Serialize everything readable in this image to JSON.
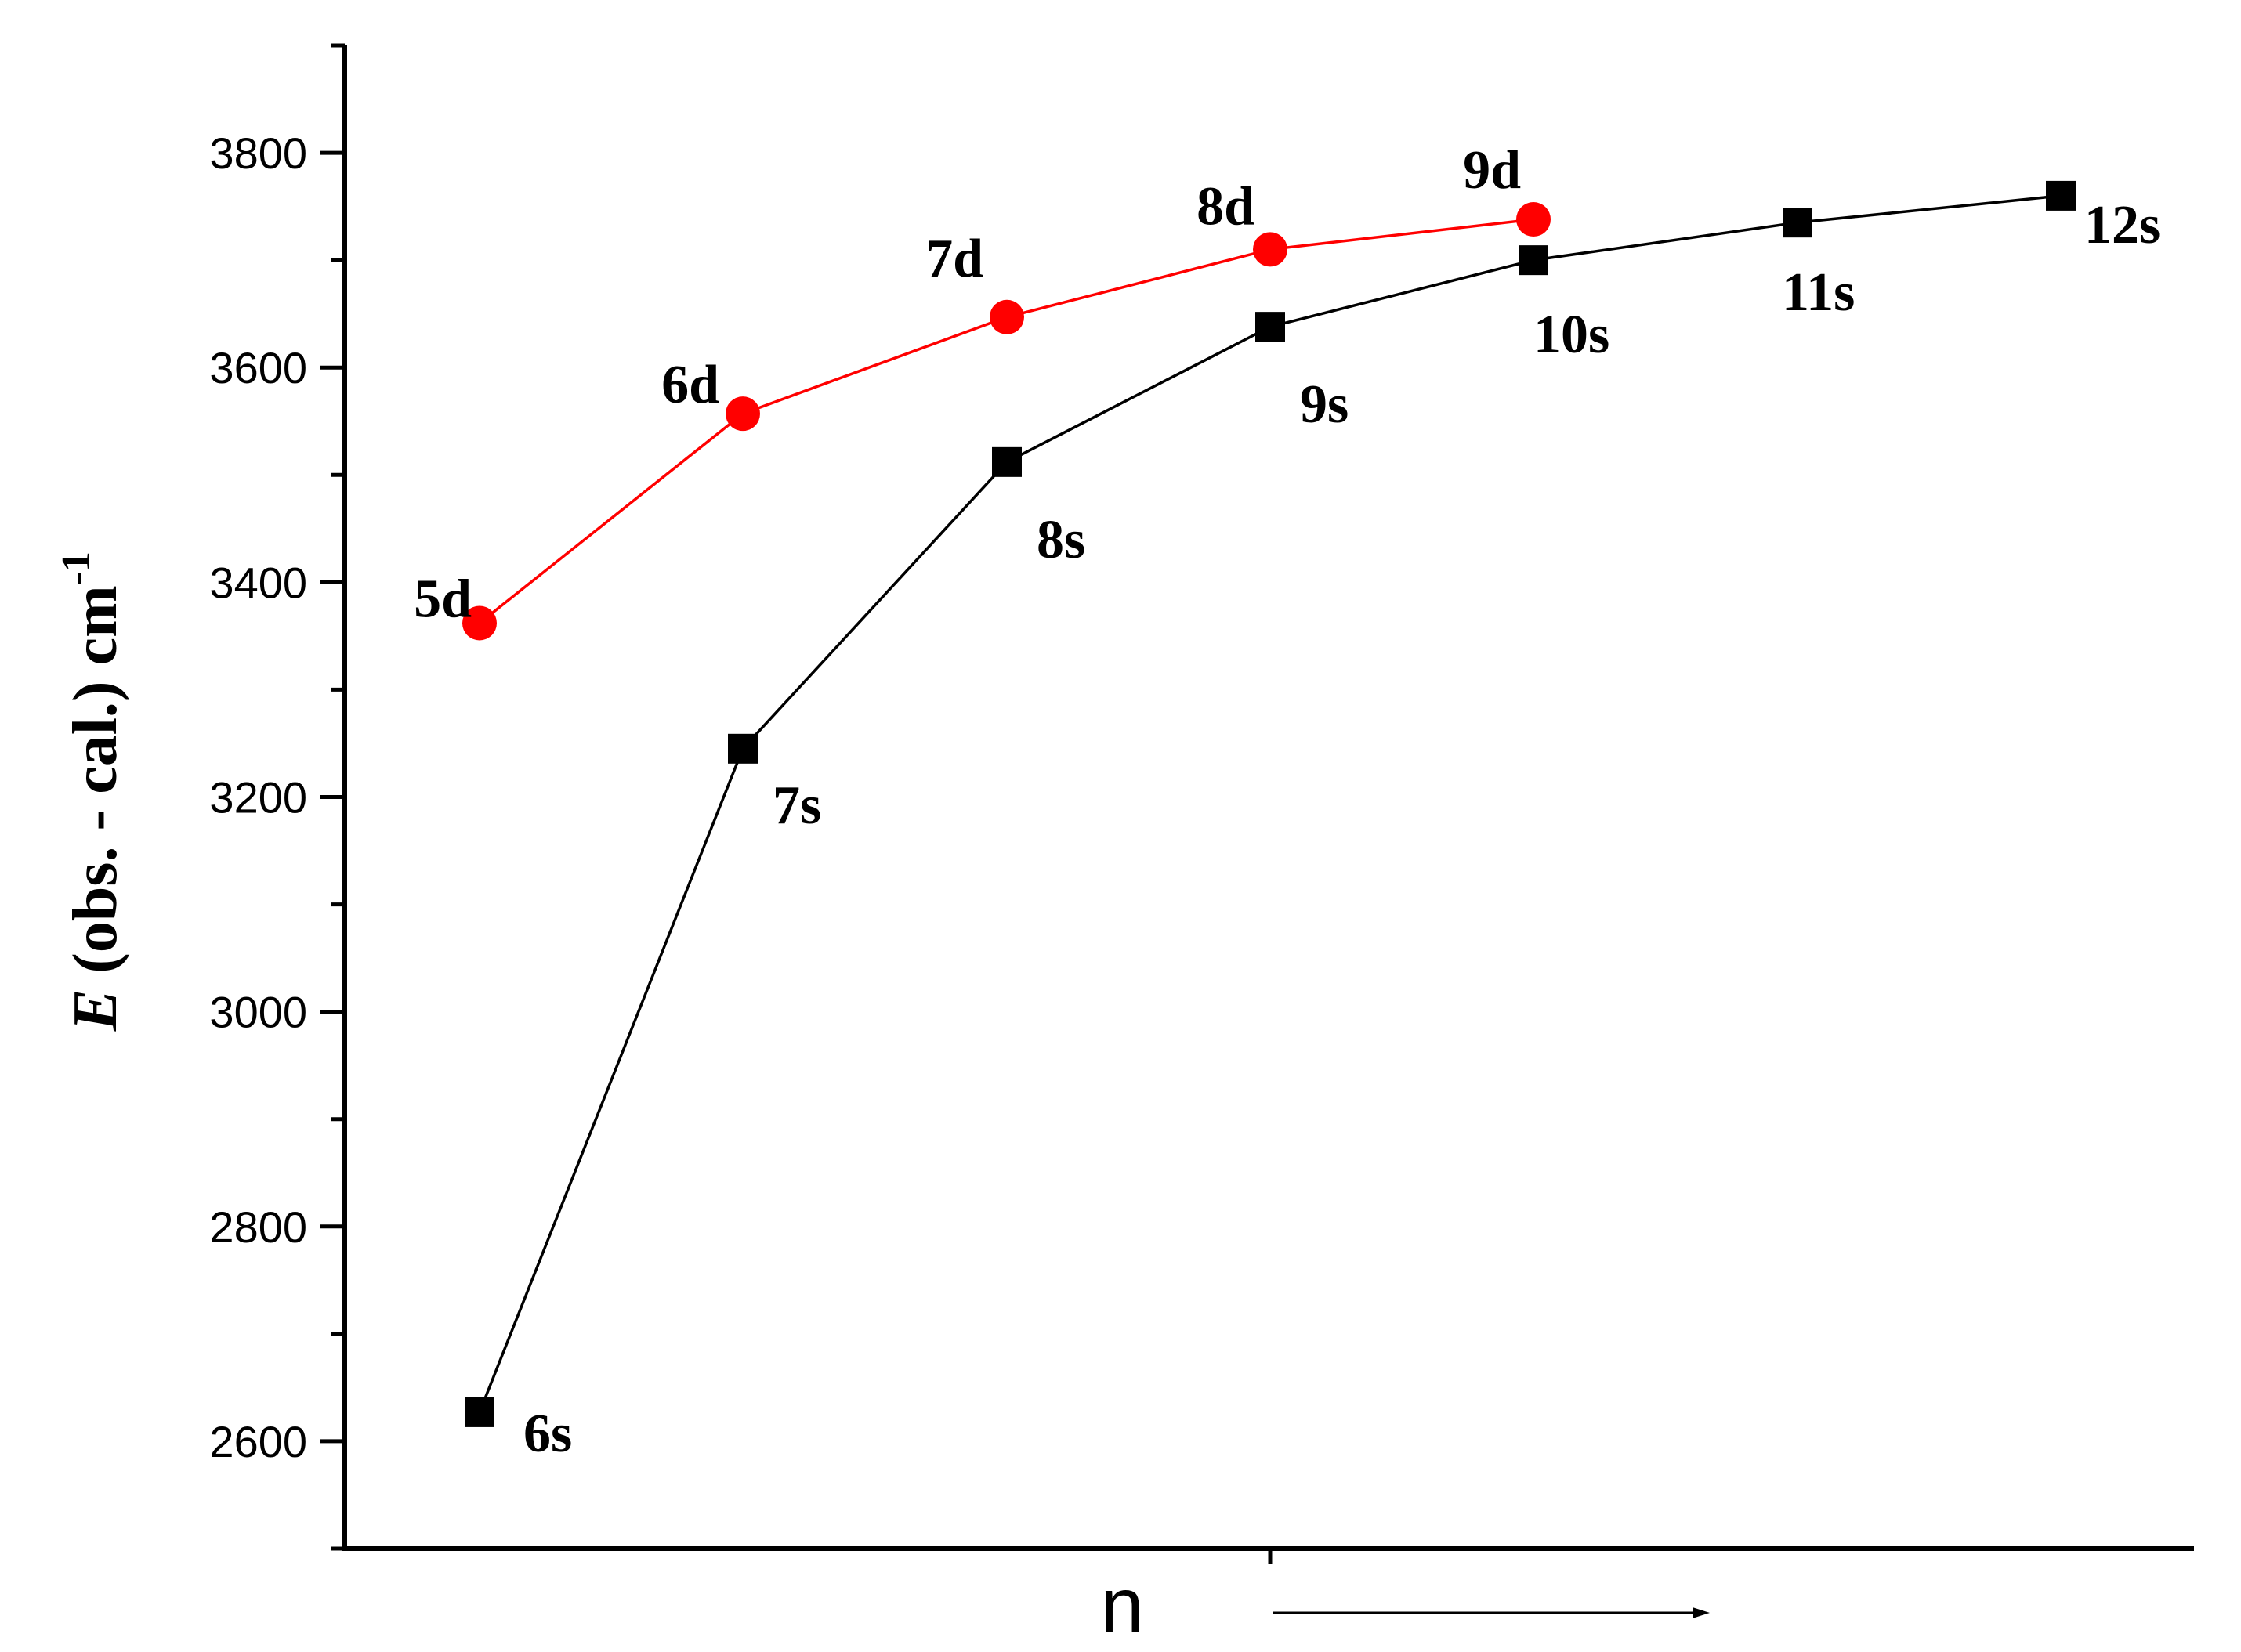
{
  "chart_data": {
    "type": "line",
    "title": "",
    "ylabel": {
      "symbol": "E",
      "text": " (obs. - cal.) cm",
      "superscript": "-1"
    },
    "xlabel": "n",
    "ylim": [
      2500,
      3900
    ],
    "yticks": [
      2600,
      2800,
      3000,
      3200,
      3400,
      3600,
      3800
    ],
    "ytick_labels": [
      "2600",
      "2800",
      "3000",
      "3200",
      "3400",
      "3600",
      "3800"
    ],
    "grid": false,
    "x_arrow": true,
    "series": [
      {
        "marker": "square",
        "color": "#000000",
        "points": [
          {
            "x": 0,
            "y": 2627,
            "label": "6s"
          },
          {
            "x": 1,
            "y": 3245,
            "label": "7s"
          },
          {
            "x": 2,
            "y": 3512,
            "label": "8s"
          },
          {
            "x": 3,
            "y": 3638,
            "label": "9s"
          },
          {
            "x": 4,
            "y": 3700,
            "label": "10s"
          },
          {
            "x": 5,
            "y": 3735,
            "label": "11s"
          },
          {
            "x": 6,
            "y": 3760,
            "label": "12s"
          }
        ]
      },
      {
        "marker": "circle",
        "color": "#ff0000",
        "points": [
          {
            "x": 0,
            "y": 3362,
            "label": "5d"
          },
          {
            "x": 1,
            "y": 3557,
            "label": "6d"
          },
          {
            "x": 2,
            "y": 3647,
            "label": "7d"
          },
          {
            "x": 3,
            "y": 3710,
            "label": "8d"
          },
          {
            "x": 4,
            "y": 3738,
            "label": "9d"
          }
        ]
      }
    ]
  }
}
